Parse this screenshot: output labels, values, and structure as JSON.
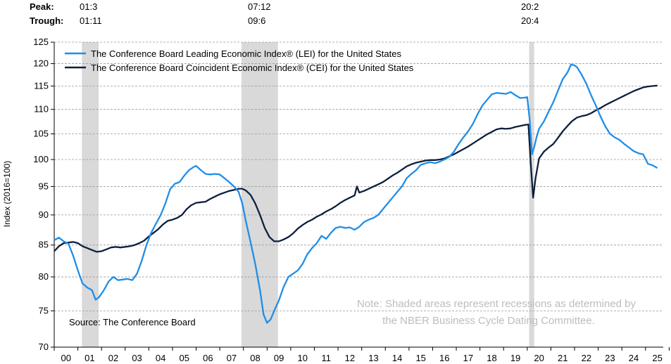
{
  "header": {
    "peak_label": "Peak:",
    "trough_label": "Trough:",
    "recessions": [
      {
        "peak": "01:3",
        "trough": "01:11"
      },
      {
        "peak": "07:12",
        "trough": "09:6"
      },
      {
        "peak": "20:2",
        "trough": "20:4"
      }
    ]
  },
  "chart_data": {
    "type": "line",
    "title": "",
    "xlabel": "",
    "ylabel": "Index (2016=100)",
    "log_scale_y": true,
    "ylim": [
      70,
      125
    ],
    "xlim": [
      2000.0,
      2025.75
    ],
    "yticks": [
      70,
      75,
      80,
      85,
      90,
      95,
      100,
      105,
      110,
      115,
      120,
      125
    ],
    "xtick_labels": [
      "00",
      "01",
      "02",
      "03",
      "04",
      "05",
      "06",
      "07",
      "08",
      "09",
      "10",
      "11",
      "12",
      "13",
      "14",
      "15",
      "16",
      "17",
      "18",
      "19",
      "20",
      "21",
      "22",
      "23",
      "24",
      "25"
    ],
    "grid": "horizontal-dashed",
    "legend_position": "top-left",
    "recession_shading": [
      [
        2001.17,
        2001.88
      ],
      [
        2007.92,
        2009.46
      ],
      [
        2020.08,
        2020.29
      ]
    ],
    "source": "Source: The Conference Board",
    "note_lines": [
      "Note: Shaded areas represent recessions as determined by",
      "the NBER Business Cycle Dating Committee."
    ],
    "series": [
      {
        "name": "The Conference Board Leading Economic Index® (LEI) for the United States",
        "color": "#1f8ee8",
        "points": [
          [
            2000.0,
            85.8
          ],
          [
            2000.2,
            86.2
          ],
          [
            2000.4,
            85.6
          ],
          [
            2000.6,
            85.2
          ],
          [
            2000.8,
            83.3
          ],
          [
            2001.0,
            81.0
          ],
          [
            2001.2,
            79.0
          ],
          [
            2001.4,
            78.4
          ],
          [
            2001.6,
            78.0
          ],
          [
            2001.75,
            76.6
          ],
          [
            2001.9,
            77.0
          ],
          [
            2002.1,
            78.0
          ],
          [
            2002.3,
            79.3
          ],
          [
            2002.5,
            80.0
          ],
          [
            2002.7,
            79.5
          ],
          [
            2002.9,
            79.6
          ],
          [
            2003.1,
            79.7
          ],
          [
            2003.3,
            79.5
          ],
          [
            2003.5,
            80.5
          ],
          [
            2003.7,
            82.5
          ],
          [
            2003.9,
            85.0
          ],
          [
            2004.1,
            87.0
          ],
          [
            2004.3,
            88.5
          ],
          [
            2004.5,
            90.0
          ],
          [
            2004.7,
            92.0
          ],
          [
            2004.9,
            94.5
          ],
          [
            2005.1,
            95.5
          ],
          [
            2005.3,
            95.8
          ],
          [
            2005.5,
            97.0
          ],
          [
            2005.7,
            98.0
          ],
          [
            2005.9,
            98.6
          ],
          [
            2006.0,
            98.8
          ],
          [
            2006.2,
            98.0
          ],
          [
            2006.4,
            97.3
          ],
          [
            2006.6,
            97.2
          ],
          [
            2006.8,
            97.3
          ],
          [
            2007.0,
            97.2
          ],
          [
            2007.2,
            96.5
          ],
          [
            2007.4,
            95.8
          ],
          [
            2007.6,
            95.0
          ],
          [
            2007.8,
            94.0
          ],
          [
            2007.95,
            92.0
          ],
          [
            2008.1,
            89.0
          ],
          [
            2008.3,
            85.5
          ],
          [
            2008.5,
            82.0
          ],
          [
            2008.7,
            78.0
          ],
          [
            2008.85,
            74.5
          ],
          [
            2009.0,
            73.3
          ],
          [
            2009.15,
            73.8
          ],
          [
            2009.3,
            75.0
          ],
          [
            2009.5,
            76.5
          ],
          [
            2009.7,
            78.5
          ],
          [
            2009.9,
            80.0
          ],
          [
            2010.1,
            80.5
          ],
          [
            2010.3,
            81.0
          ],
          [
            2010.5,
            82.0
          ],
          [
            2010.7,
            83.5
          ],
          [
            2010.9,
            84.5
          ],
          [
            2011.1,
            85.3
          ],
          [
            2011.3,
            86.5
          ],
          [
            2011.5,
            86.0
          ],
          [
            2011.7,
            87.0
          ],
          [
            2011.9,
            87.8
          ],
          [
            2012.1,
            88.0
          ],
          [
            2012.3,
            87.8
          ],
          [
            2012.5,
            87.9
          ],
          [
            2012.7,
            87.5
          ],
          [
            2012.9,
            88.0
          ],
          [
            2013.1,
            88.8
          ],
          [
            2013.3,
            89.2
          ],
          [
            2013.5,
            89.5
          ],
          [
            2013.7,
            90.0
          ],
          [
            2013.9,
            91.0
          ],
          [
            2014.1,
            92.0
          ],
          [
            2014.3,
            93.0
          ],
          [
            2014.5,
            94.0
          ],
          [
            2014.7,
            95.0
          ],
          [
            2014.9,
            96.5
          ],
          [
            2015.1,
            97.3
          ],
          [
            2015.3,
            98.0
          ],
          [
            2015.5,
            99.0
          ],
          [
            2015.7,
            99.3
          ],
          [
            2015.9,
            99.5
          ],
          [
            2016.1,
            99.3
          ],
          [
            2016.3,
            99.6
          ],
          [
            2016.5,
            100.0
          ],
          [
            2016.7,
            100.5
          ],
          [
            2016.9,
            101.5
          ],
          [
            2017.1,
            103.0
          ],
          [
            2017.3,
            104.3
          ],
          [
            2017.5,
            105.5
          ],
          [
            2017.7,
            107.0
          ],
          [
            2017.9,
            109.0
          ],
          [
            2018.1,
            110.8
          ],
          [
            2018.3,
            112.0
          ],
          [
            2018.5,
            113.2
          ],
          [
            2018.7,
            113.5
          ],
          [
            2018.9,
            113.4
          ],
          [
            2019.1,
            113.3
          ],
          [
            2019.3,
            113.7
          ],
          [
            2019.5,
            113.0
          ],
          [
            2019.7,
            112.4
          ],
          [
            2019.9,
            112.5
          ],
          [
            2020.0,
            112.6
          ],
          [
            2020.1,
            108.0
          ],
          [
            2020.2,
            101.0
          ],
          [
            2020.3,
            102.5
          ],
          [
            2020.4,
            104.5
          ],
          [
            2020.5,
            106.0
          ],
          [
            2020.7,
            107.5
          ],
          [
            2020.9,
            109.5
          ],
          [
            2021.1,
            111.5
          ],
          [
            2021.3,
            114.0
          ],
          [
            2021.5,
            116.5
          ],
          [
            2021.7,
            118.0
          ],
          [
            2021.85,
            119.8
          ],
          [
            2022.0,
            119.6
          ],
          [
            2022.1,
            119.2
          ],
          [
            2022.3,
            117.5
          ],
          [
            2022.5,
            115.5
          ],
          [
            2022.7,
            113.0
          ],
          [
            2022.9,
            110.8
          ],
          [
            2023.1,
            108.5
          ],
          [
            2023.3,
            106.5
          ],
          [
            2023.5,
            105.0
          ],
          [
            2023.7,
            104.3
          ],
          [
            2023.9,
            103.8
          ],
          [
            2024.1,
            103.0
          ],
          [
            2024.3,
            102.3
          ],
          [
            2024.5,
            101.6
          ],
          [
            2024.7,
            101.2
          ],
          [
            2024.9,
            101.0
          ],
          [
            2025.1,
            99.2
          ],
          [
            2025.3,
            98.9
          ],
          [
            2025.5,
            98.4
          ]
        ]
      },
      {
        "name": "The Conference Board Coincident Economic Index® (CEI) for the United States",
        "color": "#0d1f3c",
        "points": [
          [
            2000.0,
            84.0
          ],
          [
            2000.2,
            84.8
          ],
          [
            2000.4,
            85.3
          ],
          [
            2000.6,
            85.4
          ],
          [
            2000.8,
            85.5
          ],
          [
            2001.0,
            85.3
          ],
          [
            2001.2,
            84.8
          ],
          [
            2001.4,
            84.5
          ],
          [
            2001.6,
            84.2
          ],
          [
            2001.8,
            83.9
          ],
          [
            2002.0,
            84.0
          ],
          [
            2002.2,
            84.3
          ],
          [
            2002.4,
            84.6
          ],
          [
            2002.6,
            84.7
          ],
          [
            2002.8,
            84.6
          ],
          [
            2003.0,
            84.7
          ],
          [
            2003.2,
            84.8
          ],
          [
            2003.4,
            85.0
          ],
          [
            2003.6,
            85.3
          ],
          [
            2003.8,
            85.7
          ],
          [
            2004.0,
            86.4
          ],
          [
            2004.2,
            87.0
          ],
          [
            2004.4,
            87.6
          ],
          [
            2004.6,
            88.4
          ],
          [
            2004.8,
            89.0
          ],
          [
            2005.0,
            89.2
          ],
          [
            2005.2,
            89.5
          ],
          [
            2005.4,
            90.0
          ],
          [
            2005.6,
            91.0
          ],
          [
            2005.8,
            91.7
          ],
          [
            2006.0,
            92.1
          ],
          [
            2006.2,
            92.2
          ],
          [
            2006.4,
            92.3
          ],
          [
            2006.6,
            92.8
          ],
          [
            2006.8,
            93.2
          ],
          [
            2007.0,
            93.6
          ],
          [
            2007.2,
            93.9
          ],
          [
            2007.4,
            94.2
          ],
          [
            2007.6,
            94.4
          ],
          [
            2007.8,
            94.6
          ],
          [
            2007.95,
            94.6
          ],
          [
            2008.1,
            94.3
          ],
          [
            2008.3,
            93.5
          ],
          [
            2008.5,
            92.0
          ],
          [
            2008.7,
            90.0
          ],
          [
            2008.9,
            87.8
          ],
          [
            2009.1,
            86.3
          ],
          [
            2009.3,
            85.6
          ],
          [
            2009.5,
            85.6
          ],
          [
            2009.7,
            85.9
          ],
          [
            2009.9,
            86.3
          ],
          [
            2010.1,
            86.9
          ],
          [
            2010.3,
            87.7
          ],
          [
            2010.5,
            88.3
          ],
          [
            2010.7,
            88.8
          ],
          [
            2010.9,
            89.2
          ],
          [
            2011.1,
            89.7
          ],
          [
            2011.3,
            90.1
          ],
          [
            2011.5,
            90.6
          ],
          [
            2011.7,
            91.0
          ],
          [
            2011.9,
            91.5
          ],
          [
            2012.1,
            92.1
          ],
          [
            2012.3,
            92.6
          ],
          [
            2012.5,
            93.0
          ],
          [
            2012.7,
            93.4
          ],
          [
            2012.8,
            95.0
          ],
          [
            2012.9,
            93.9
          ],
          [
            2013.1,
            94.2
          ],
          [
            2013.3,
            94.6
          ],
          [
            2013.5,
            95.0
          ],
          [
            2013.7,
            95.4
          ],
          [
            2013.9,
            95.8
          ],
          [
            2014.1,
            96.4
          ],
          [
            2014.3,
            97.0
          ],
          [
            2014.5,
            97.5
          ],
          [
            2014.7,
            98.1
          ],
          [
            2014.9,
            98.7
          ],
          [
            2015.1,
            99.1
          ],
          [
            2015.3,
            99.4
          ],
          [
            2015.5,
            99.6
          ],
          [
            2015.7,
            99.8
          ],
          [
            2015.9,
            99.9
          ],
          [
            2016.1,
            99.9
          ],
          [
            2016.3,
            100.0
          ],
          [
            2016.5,
            100.2
          ],
          [
            2016.7,
            100.6
          ],
          [
            2016.9,
            101.0
          ],
          [
            2017.1,
            101.5
          ],
          [
            2017.3,
            102.0
          ],
          [
            2017.5,
            102.5
          ],
          [
            2017.7,
            103.1
          ],
          [
            2017.9,
            103.7
          ],
          [
            2018.1,
            104.3
          ],
          [
            2018.3,
            104.9
          ],
          [
            2018.5,
            105.4
          ],
          [
            2018.7,
            105.9
          ],
          [
            2018.9,
            106.1
          ],
          [
            2019.1,
            106.0
          ],
          [
            2019.3,
            106.1
          ],
          [
            2019.5,
            106.4
          ],
          [
            2019.7,
            106.6
          ],
          [
            2019.9,
            106.8
          ],
          [
            2020.05,
            106.9
          ],
          [
            2020.15,
            99.0
          ],
          [
            2020.25,
            93.0
          ],
          [
            2020.35,
            96.5
          ],
          [
            2020.5,
            100.2
          ],
          [
            2020.7,
            101.5
          ],
          [
            2020.9,
            102.3
          ],
          [
            2021.1,
            103.0
          ],
          [
            2021.3,
            104.2
          ],
          [
            2021.5,
            105.5
          ],
          [
            2021.7,
            106.6
          ],
          [
            2021.9,
            107.6
          ],
          [
            2022.1,
            108.3
          ],
          [
            2022.3,
            108.6
          ],
          [
            2022.5,
            108.8
          ],
          [
            2022.7,
            109.2
          ],
          [
            2022.9,
            109.8
          ],
          [
            2023.1,
            110.3
          ],
          [
            2023.3,
            110.9
          ],
          [
            2023.5,
            111.4
          ],
          [
            2023.7,
            111.9
          ],
          [
            2023.9,
            112.4
          ],
          [
            2024.1,
            112.9
          ],
          [
            2024.3,
            113.4
          ],
          [
            2024.5,
            113.9
          ],
          [
            2024.7,
            114.3
          ],
          [
            2024.9,
            114.7
          ],
          [
            2025.1,
            114.9
          ],
          [
            2025.3,
            115.0
          ],
          [
            2025.5,
            115.1
          ]
        ]
      }
    ]
  }
}
